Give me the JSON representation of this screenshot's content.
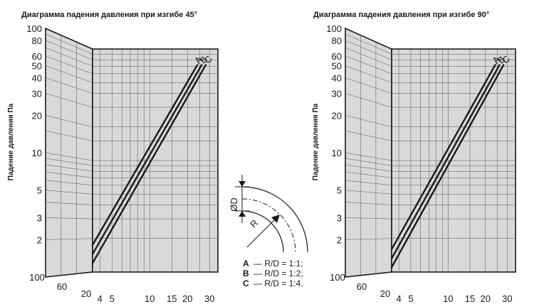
{
  "chart_data": [
    {
      "type": "line",
      "title": "Диаграмма падения давления при изгибе 45°",
      "ylabel": "Падение давления Па",
      "y_scale": "log",
      "ylim": [
        1,
        100
      ],
      "y_ticks": [
        "100",
        "80",
        "60",
        "50",
        "40",
        "30",
        "20",
        "10",
        "5",
        "3",
        "2"
      ],
      "side_ticks": [
        "100",
        "60",
        "20"
      ],
      "x_scale": "log",
      "xlim": [
        3.5,
        35
      ],
      "x_ticks": [
        "4",
        "5",
        "10",
        "15",
        "20",
        "30"
      ],
      "grid": true,
      "series": [
        {
          "name": "A",
          "x": [
            3.5,
            24
          ],
          "y": [
            1.75,
            72
          ]
        },
        {
          "name": "B",
          "x": [
            3.5,
            26
          ],
          "y": [
            1.45,
            72
          ]
        },
        {
          "name": "C",
          "x": [
            3.5,
            28
          ],
          "y": [
            1.2,
            72
          ]
        }
      ]
    },
    {
      "type": "line",
      "title": "Диаграмма падения давления при изгибе 90°",
      "ylabel": "Падение давления Па",
      "y_scale": "log",
      "ylim": [
        1,
        100
      ],
      "y_ticks": [
        "100",
        "80",
        "60",
        "50",
        "40",
        "30",
        "20",
        "10",
        "5",
        "3",
        "2"
      ],
      "side_ticks": [
        "100",
        "60",
        "20"
      ],
      "x_scale": "log",
      "xlim": [
        3.5,
        35
      ],
      "x_ticks": [
        "4",
        "5",
        "10",
        "15",
        "20",
        "30"
      ],
      "grid": true,
      "series": [
        {
          "name": "A",
          "x": [
            3.5,
            24
          ],
          "y": [
            1.6,
            72
          ]
        },
        {
          "name": "B",
          "x": [
            3.5,
            26
          ],
          "y": [
            1.32,
            72
          ]
        },
        {
          "name": "C",
          "x": [
            3.5,
            28
          ],
          "y": [
            1.1,
            72
          ]
        }
      ]
    }
  ],
  "legend": [
    {
      "key": "A",
      "text": "— R/D = 1:1;"
    },
    {
      "key": "B",
      "text": "— R/D = 1:2;"
    },
    {
      "key": "C",
      "text": "— R/D = 1:4."
    }
  ],
  "diagram": {
    "diameter_label": "ØD",
    "radius_label": "R"
  },
  "colors": {
    "panel_fill": "#d9d9d9",
    "line": "#1a1a1a",
    "grid": "#555555"
  }
}
